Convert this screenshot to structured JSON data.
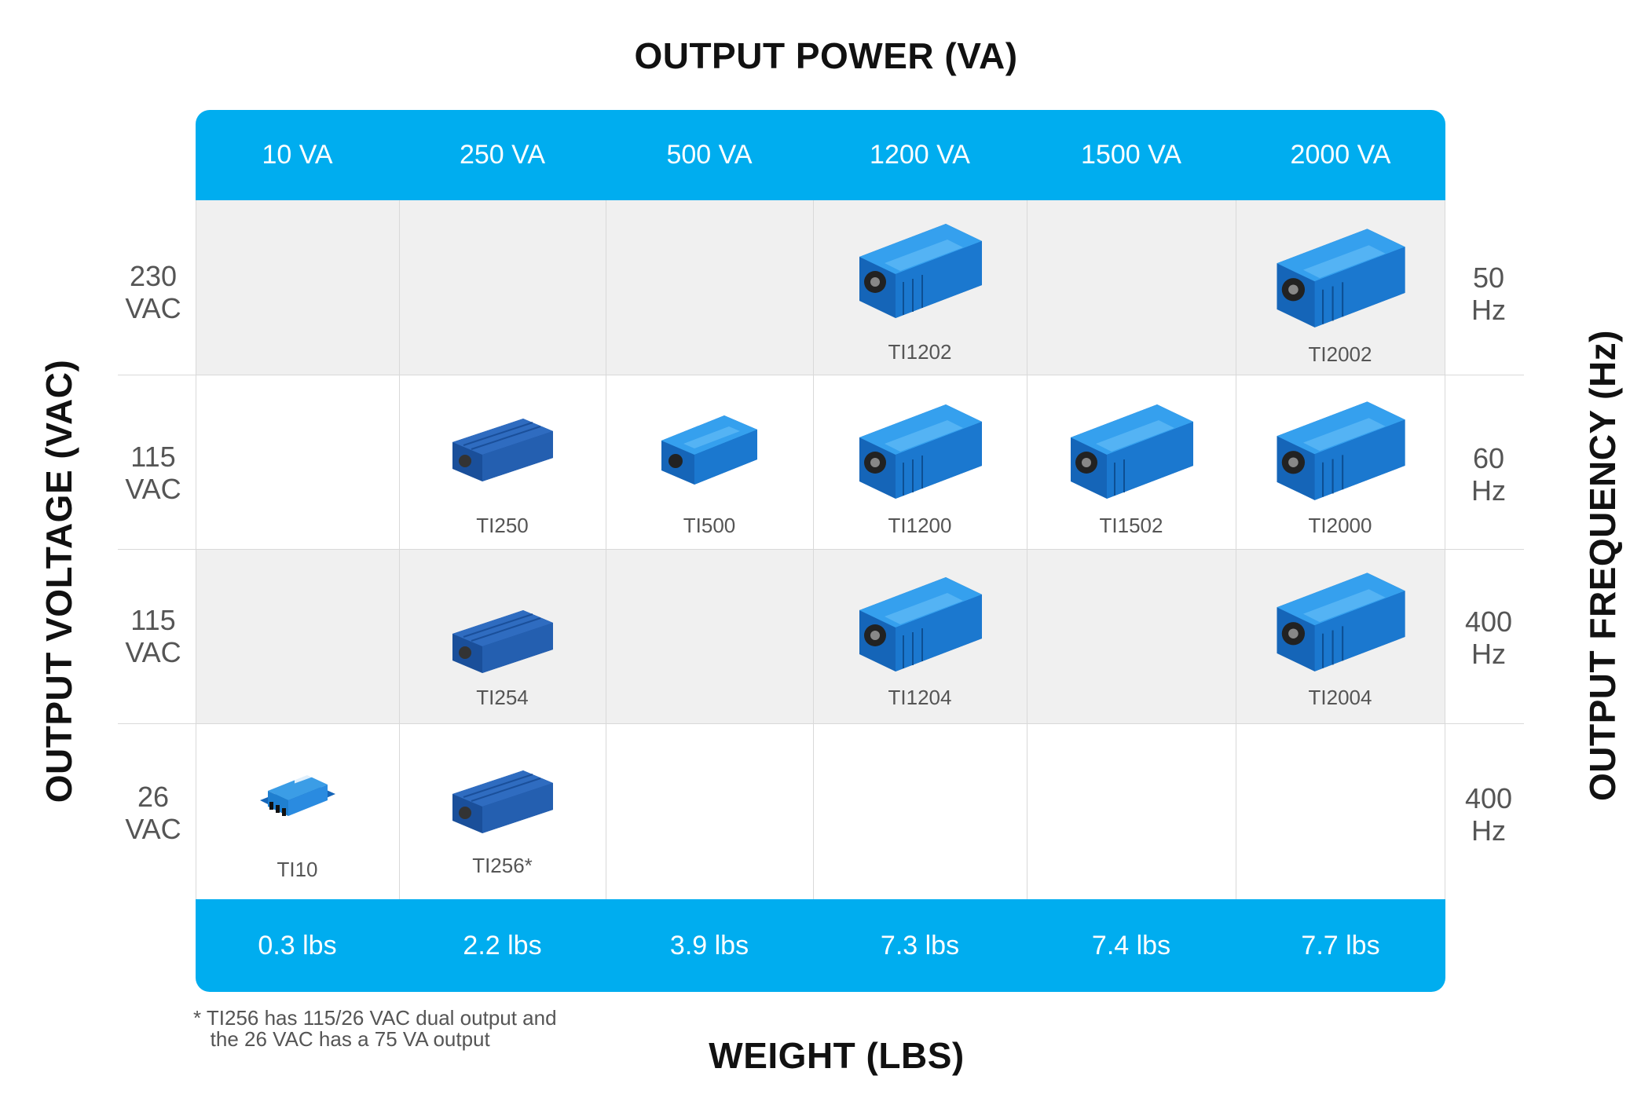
{
  "titles": {
    "top": "OUTPUT POWER (VA)",
    "bottom": "WEIGHT (LBS)",
    "left": "OUTPUT VOLTAGE (VAC)",
    "right": "OUTPUT FREQUENCY (Hz)"
  },
  "power_columns": [
    "10 VA",
    "250 VA",
    "500 VA",
    "1200 VA",
    "1500 VA",
    "2000 VA"
  ],
  "weights": [
    "0.3 lbs",
    "2.2 lbs",
    "3.9 lbs",
    "7.3 lbs",
    "7.4 lbs",
    "7.7 lbs"
  ],
  "rows": [
    {
      "voltage": [
        "230",
        "VAC"
      ],
      "frequency": [
        "50",
        "Hz"
      ],
      "products": [
        null,
        null,
        null,
        "TI1202",
        null,
        "TI2002"
      ]
    },
    {
      "voltage": [
        "115",
        "VAC"
      ],
      "frequency": [
        "60",
        "Hz"
      ],
      "products": [
        null,
        "TI250",
        "TI500",
        "TI1200",
        "TI1502",
        "TI2000"
      ]
    },
    {
      "voltage": [
        "115",
        "VAC"
      ],
      "frequency": [
        "400",
        "Hz"
      ],
      "products": [
        null,
        "TI254",
        null,
        "TI1204",
        null,
        "TI2004"
      ]
    },
    {
      "voltage": [
        "26",
        "VAC"
      ],
      "frequency": [
        "400",
        "Hz"
      ],
      "products": [
        "TI10",
        "TI256*",
        null,
        null,
        null,
        null
      ]
    }
  ],
  "footnote": [
    "* TI256 has 115/26 VAC dual output and",
    "   the 26 VAC has a 75 VA output"
  ],
  "colors": {
    "accent": "#00adef",
    "product_blue": "#1f7fd0",
    "row_grey": "#f0f0f0"
  }
}
